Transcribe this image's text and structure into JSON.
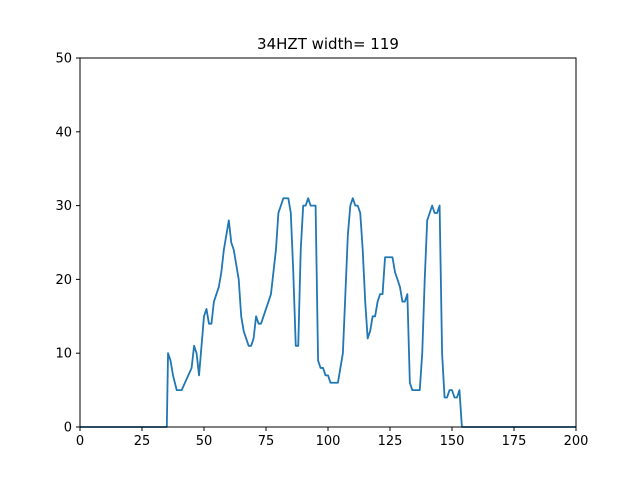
{
  "chart_data": {
    "type": "line",
    "title": "34HZT width= 119",
    "xlabel": "",
    "ylabel": "",
    "xlim": [
      0,
      200
    ],
    "ylim": [
      0,
      50
    ],
    "xticks": [
      0,
      25,
      50,
      75,
      100,
      125,
      150,
      175,
      200
    ],
    "yticks": [
      0,
      10,
      20,
      30,
      40,
      50
    ],
    "grid": false,
    "line_color": "#1f77b4",
    "series": [
      {
        "x": [
          0,
          35,
          35.5,
          36.5,
          37.5,
          39,
          41,
          43,
          45,
          46,
          47,
          48,
          49,
          50,
          51,
          52,
          53,
          54,
          56,
          57,
          58,
          59,
          60,
          61,
          62,
          63,
          64,
          65,
          66,
          67,
          68,
          69,
          70,
          71,
          72,
          73,
          74,
          75,
          76,
          77,
          78,
          79,
          80,
          81,
          82,
          83,
          84,
          85,
          86,
          87,
          88,
          89,
          90,
          91,
          92,
          93,
          94,
          95,
          96,
          97,
          98,
          99,
          100,
          101,
          102,
          103,
          104,
          105,
          106,
          107,
          108,
          109,
          110,
          111,
          112,
          113,
          114,
          115,
          116,
          117,
          118,
          119,
          120,
          121,
          122,
          123,
          124,
          125,
          126,
          127,
          128,
          129,
          130,
          131,
          132,
          133,
          134,
          135,
          136,
          137,
          138,
          139,
          140,
          141,
          142,
          143,
          144,
          145,
          146,
          147,
          148,
          149,
          150,
          151,
          152,
          153,
          154,
          155,
          200
        ],
        "y": [
          0,
          0,
          10,
          9,
          7,
          5,
          5,
          6.5,
          8,
          11,
          10,
          7,
          11,
          15,
          16,
          14,
          14,
          17,
          19,
          21,
          24,
          26,
          28,
          25,
          24,
          22,
          20,
          15,
          13,
          12,
          11,
          11,
          12,
          15,
          14,
          14,
          15,
          16,
          17,
          18,
          21,
          24,
          29,
          30,
          31,
          31,
          31,
          29,
          21,
          11,
          11,
          24,
          30,
          30,
          31,
          30,
          30,
          30,
          9,
          8,
          8,
          7,
          7,
          6,
          6,
          6,
          6,
          8,
          10,
          18,
          26,
          30,
          31,
          30,
          30,
          29,
          24,
          17,
          12,
          13,
          15,
          15,
          17,
          18,
          18,
          23,
          23,
          23,
          23,
          21,
          20,
          19,
          17,
          17,
          18,
          6,
          5,
          5,
          5,
          5,
          10,
          20,
          28,
          29,
          30,
          29,
          29,
          30,
          10,
          4,
          4,
          5,
          5,
          4,
          4,
          5,
          0,
          0,
          0
        ]
      }
    ]
  }
}
